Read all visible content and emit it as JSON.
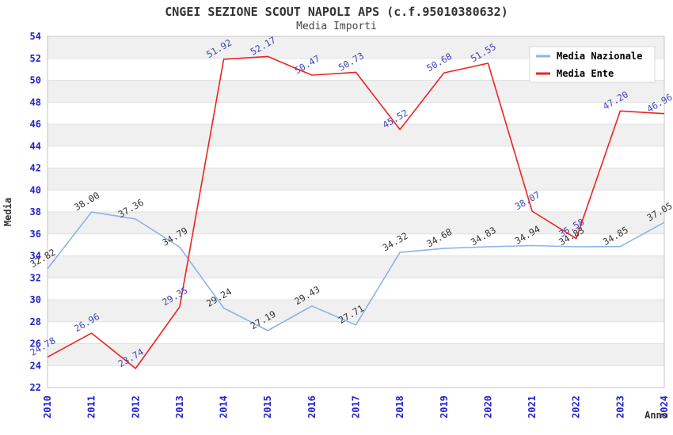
{
  "header": {
    "title": "CNGEI SEZIONE SCOUT NAPOLI APS (c.f.95010380632)",
    "subtitle": "Media Importi"
  },
  "chart_data": {
    "type": "line",
    "x": [
      "2010",
      "2011",
      "2012",
      "2013",
      "2014",
      "2015",
      "2016",
      "2017",
      "2018",
      "2019",
      "2020",
      "2021",
      "2022",
      "2023",
      "2024"
    ],
    "xlabel": "Anno",
    "ylabel": "Media",
    "ylim": [
      22,
      54
    ],
    "ytick_step": 2,
    "grid": true,
    "legend_position": "top-right",
    "band_colors": [
      "#f0f0f0",
      "#ffffff"
    ],
    "gridline_color": "#e0e0e0",
    "plot_border_color": "#c4c4c4",
    "axis_tick_color": "#2222cc",
    "series": [
      {
        "name": "Media Nazionale",
        "color": "#8ab4e8",
        "label_color": "#333333",
        "values": [
          32.82,
          38.0,
          37.36,
          34.79,
          29.24,
          27.19,
          29.43,
          27.71,
          34.32,
          34.68,
          34.83,
          34.94,
          34.83,
          34.85,
          37.05
        ]
      },
      {
        "name": "Media Ente",
        "color": "#ee2222",
        "label_color": "#4444bb",
        "values": [
          24.78,
          26.96,
          23.74,
          29.35,
          51.92,
          52.17,
          50.47,
          50.73,
          45.52,
          50.68,
          51.55,
          38.07,
          35.58,
          47.2,
          46.96
        ]
      }
    ]
  }
}
